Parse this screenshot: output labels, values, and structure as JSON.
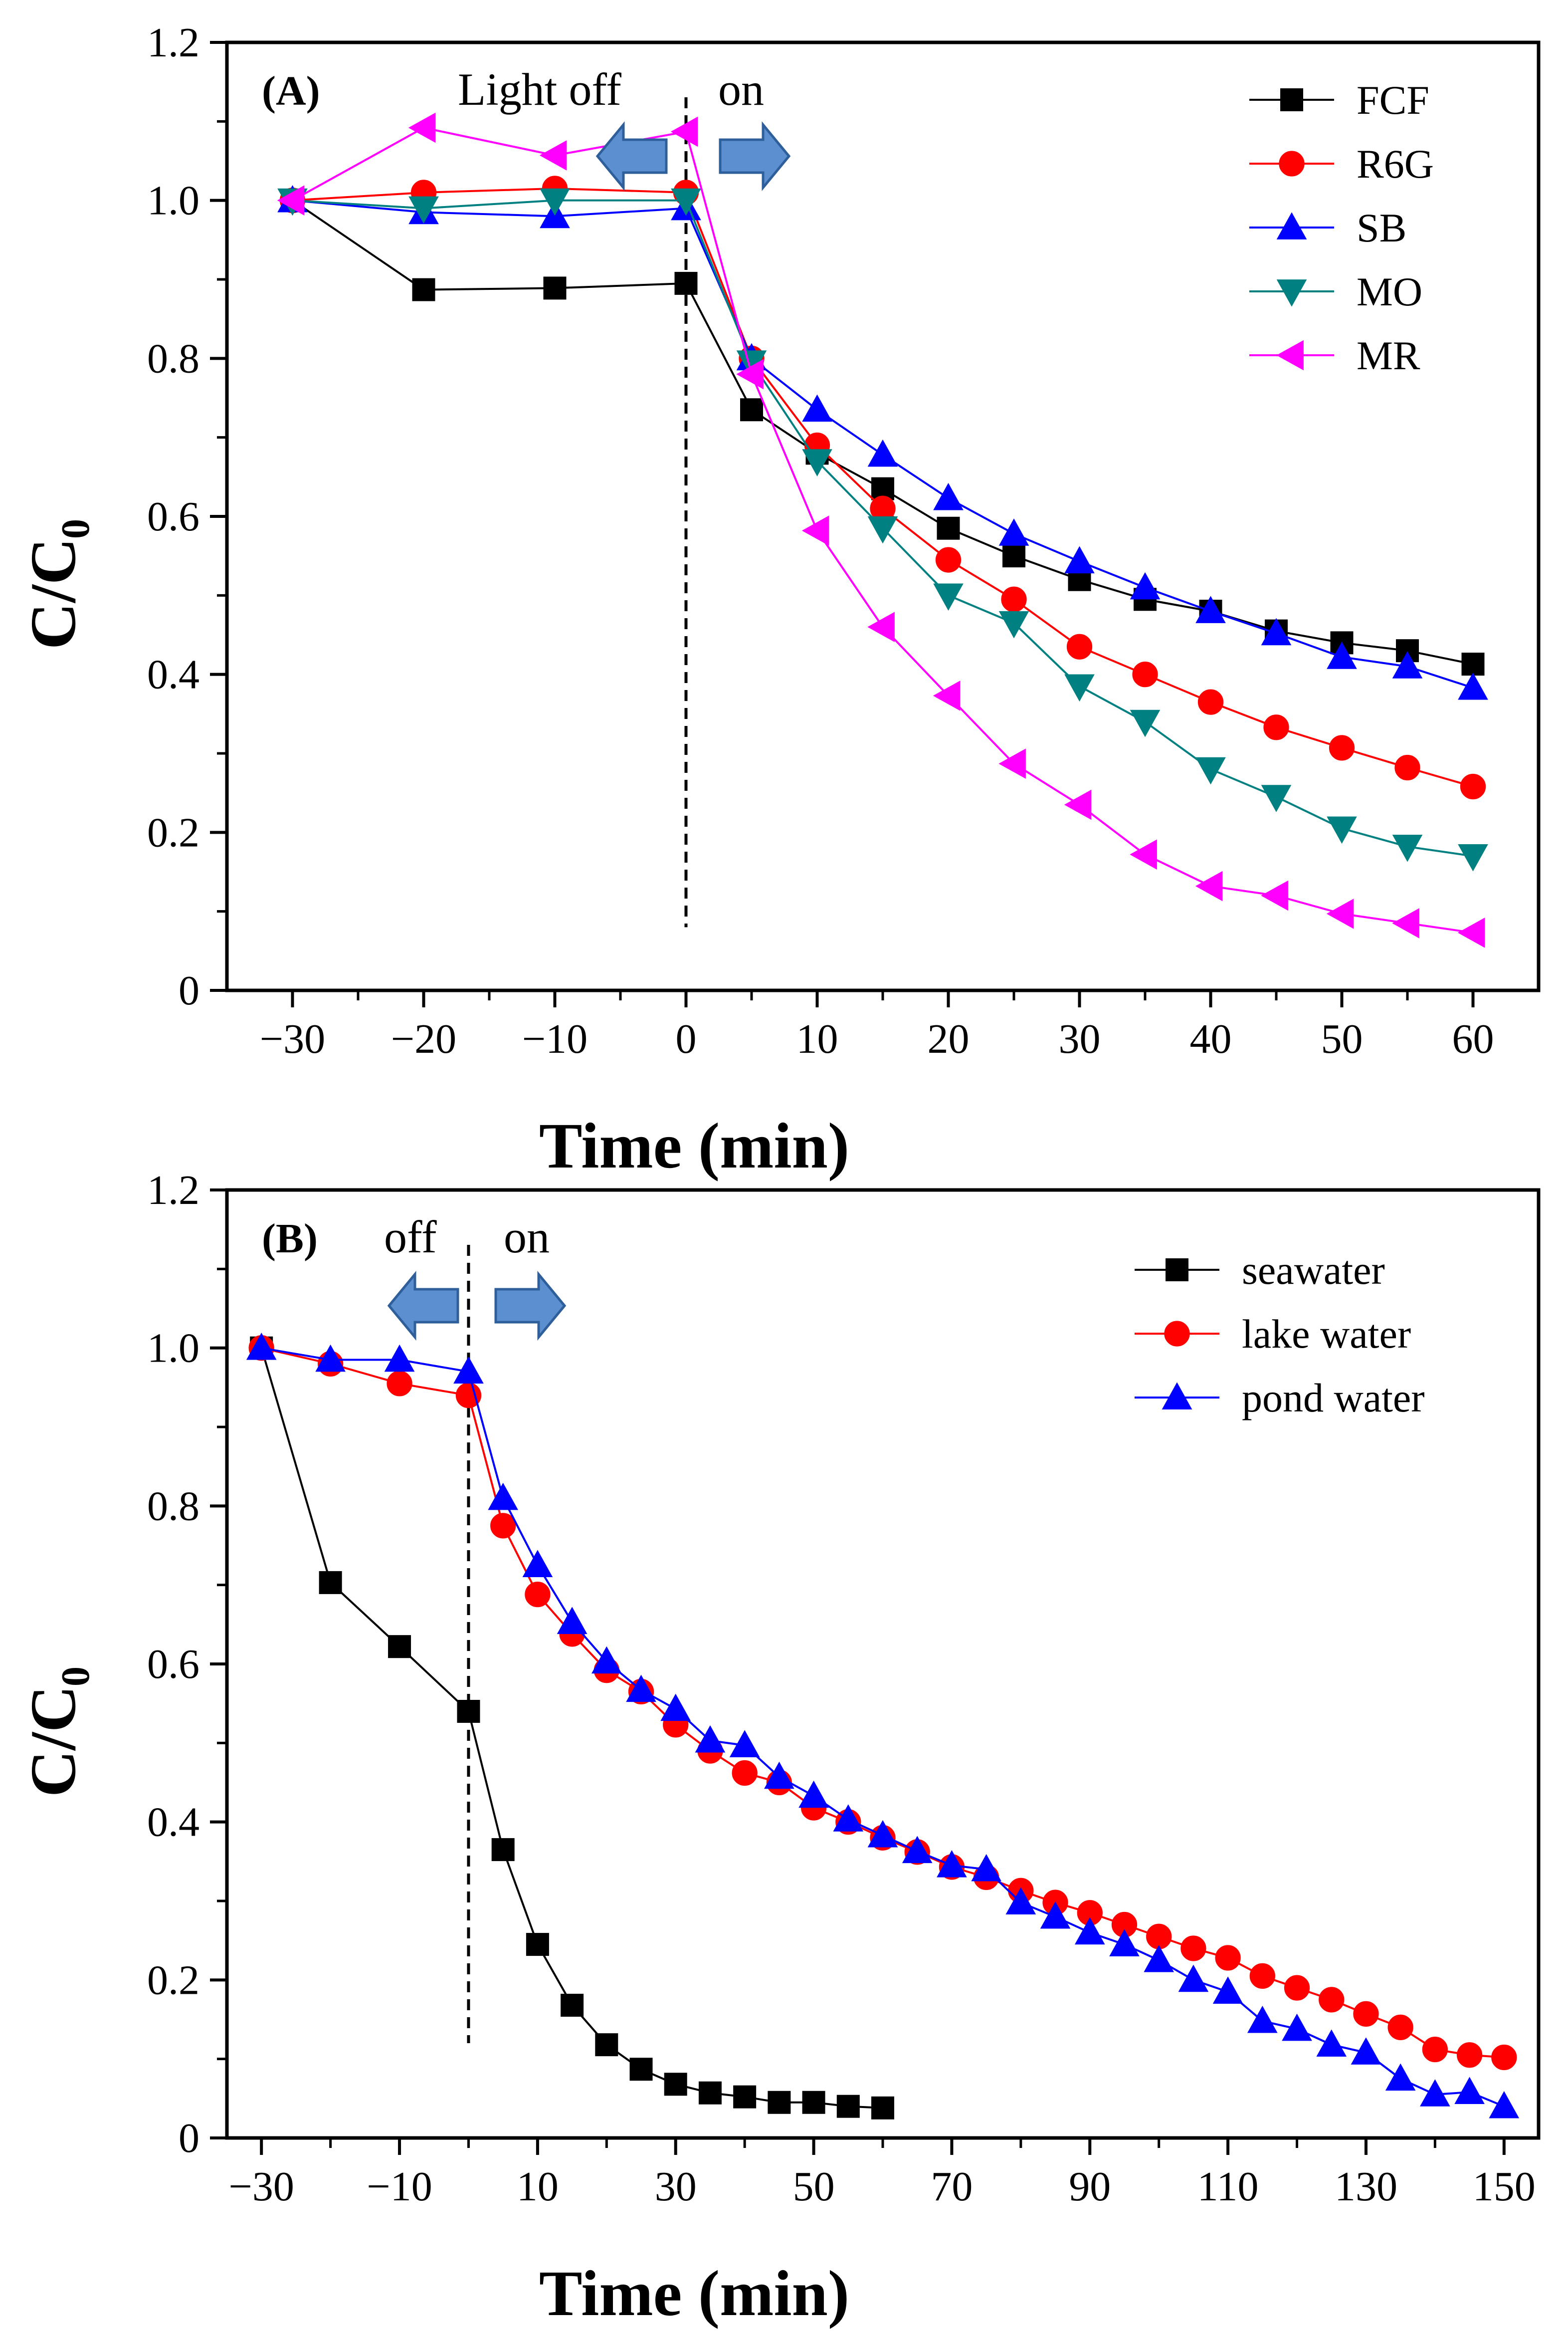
{
  "chart_data": [
    {
      "type": "line",
      "panel_label": "(A)",
      "annotation_left": "Light off",
      "annotation_right": "on",
      "xlabel": "Time (min)",
      "ylabel": "C/C",
      "ylabel_sub": "0",
      "xlim": [
        -35,
        65
      ],
      "ylim": [
        0,
        1.2
      ],
      "xticks": [
        -30,
        -20,
        -10,
        0,
        10,
        20,
        30,
        40,
        50,
        60
      ],
      "yticks": [
        0,
        0.2,
        0.4,
        0.6,
        0.8,
        1.0,
        1.2
      ],
      "xtick_labels": [
        "−30",
        "−20",
        "−10",
        "0",
        "10",
        "20",
        "30",
        "40",
        "50",
        "60"
      ],
      "ytick_labels": [
        "0",
        "0.2",
        "0.4",
        "0.6",
        "0.8",
        "1.0",
        "1.2"
      ],
      "divider_x": 0,
      "legend_position": "top-right",
      "x": [
        -30,
        -20,
        -10,
        0,
        5,
        10,
        15,
        20,
        25,
        30,
        35,
        40,
        45,
        50,
        55,
        60
      ],
      "series": [
        {
          "name": "FCF",
          "color": "#000000",
          "marker": "square",
          "values": [
            1.0,
            0.887,
            0.889,
            0.895,
            0.735,
            0.68,
            0.635,
            0.585,
            0.55,
            0.52,
            0.495,
            0.48,
            0.455,
            0.44,
            0.43,
            0.413
          ]
        },
        {
          "name": "R6G",
          "color": "#ff0000",
          "marker": "circle",
          "values": [
            1.0,
            1.01,
            1.015,
            1.01,
            0.8,
            0.69,
            0.61,
            0.545,
            0.495,
            0.435,
            0.4,
            0.365,
            0.333,
            0.307,
            0.282,
            0.258
          ]
        },
        {
          "name": "SB",
          "color": "#0000ff",
          "marker": "triangle-up",
          "values": [
            1.0,
            0.985,
            0.98,
            0.99,
            0.8,
            0.735,
            0.678,
            0.623,
            0.578,
            0.543,
            0.51,
            0.48,
            0.452,
            0.422,
            0.41,
            0.383
          ]
        },
        {
          "name": "MO",
          "color": "#008080",
          "marker": "triangle-down",
          "values": [
            1.0,
            0.99,
            1.0,
            1.0,
            0.795,
            0.67,
            0.585,
            0.5,
            0.465,
            0.385,
            0.34,
            0.28,
            0.245,
            0.205,
            0.182,
            0.17
          ]
        },
        {
          "name": "MR",
          "color": "#ff00ff",
          "marker": "triangle-left",
          "values": [
            1.0,
            1.092,
            1.057,
            1.087,
            0.78,
            0.582,
            0.46,
            0.373,
            0.287,
            0.235,
            0.172,
            0.132,
            0.12,
            0.097,
            0.085,
            0.073
          ]
        }
      ]
    },
    {
      "type": "line",
      "panel_label": "(B)",
      "annotation_left": "off",
      "annotation_right": "on",
      "xlabel": "Time (min)",
      "ylabel": "C/C",
      "ylabel_sub": "0",
      "xlim": [
        -35,
        155
      ],
      "ylim": [
        0,
        1.2
      ],
      "xticks": [
        -30,
        -10,
        10,
        30,
        50,
        70,
        90,
        110,
        130,
        150
      ],
      "yticks": [
        0,
        0.2,
        0.4,
        0.6,
        0.8,
        1.0,
        1.2
      ],
      "xtick_labels": [
        "−30",
        "−10",
        "10",
        "30",
        "50",
        "70",
        "90",
        "110",
        "130",
        "150"
      ],
      "ytick_labels": [
        "0",
        "0.2",
        "0.4",
        "0.6",
        "0.8",
        "1.0",
        "1.2"
      ],
      "divider_x": 0,
      "legend_position": "top-right",
      "series": [
        {
          "name": "seawater",
          "color": "#000000",
          "marker": "square",
          "x": [
            -30,
            -20,
            -10,
            0,
            5,
            10,
            15,
            20,
            25,
            30,
            35,
            40,
            45,
            50,
            55,
            60
          ],
          "values": [
            1.0,
            0.703,
            0.622,
            0.54,
            0.365,
            0.245,
            0.168,
            0.118,
            0.087,
            0.068,
            0.057,
            0.052,
            0.045,
            0.045,
            0.04,
            0.038
          ]
        },
        {
          "name": "lake water",
          "color": "#ff0000",
          "marker": "circle",
          "x": [
            -30,
            -20,
            -10,
            0,
            5,
            10,
            15,
            20,
            25,
            30,
            35,
            40,
            45,
            50,
            55,
            60,
            65,
            70,
            75,
            80,
            85,
            90,
            95,
            100,
            105,
            110,
            115,
            120,
            125,
            130,
            135,
            140,
            145,
            150
          ],
          "values": [
            1.0,
            0.98,
            0.955,
            0.94,
            0.775,
            0.688,
            0.638,
            0.592,
            0.565,
            0.523,
            0.49,
            0.462,
            0.45,
            0.418,
            0.4,
            0.38,
            0.362,
            0.343,
            0.33,
            0.313,
            0.298,
            0.285,
            0.27,
            0.255,
            0.24,
            0.228,
            0.205,
            0.19,
            0.175,
            0.157,
            0.14,
            0.112,
            0.105,
            0.102
          ]
        },
        {
          "name": "pond water",
          "color": "#0000ff",
          "marker": "triangle-up",
          "x": [
            -30,
            -20,
            -10,
            0,
            5,
            10,
            15,
            20,
            25,
            30,
            35,
            40,
            45,
            50,
            55,
            60,
            65,
            70,
            75,
            80,
            85,
            90,
            95,
            100,
            105,
            110,
            115,
            120,
            125,
            130,
            135,
            140,
            145,
            150
          ],
          "values": [
            1.0,
            0.985,
            0.985,
            0.97,
            0.81,
            0.725,
            0.653,
            0.603,
            0.567,
            0.543,
            0.503,
            0.497,
            0.457,
            0.433,
            0.403,
            0.383,
            0.363,
            0.345,
            0.34,
            0.298,
            0.28,
            0.26,
            0.245,
            0.225,
            0.2,
            0.185,
            0.148,
            0.138,
            0.118,
            0.108,
            0.075,
            0.055,
            0.058,
            0.04
          ]
        }
      ]
    }
  ]
}
